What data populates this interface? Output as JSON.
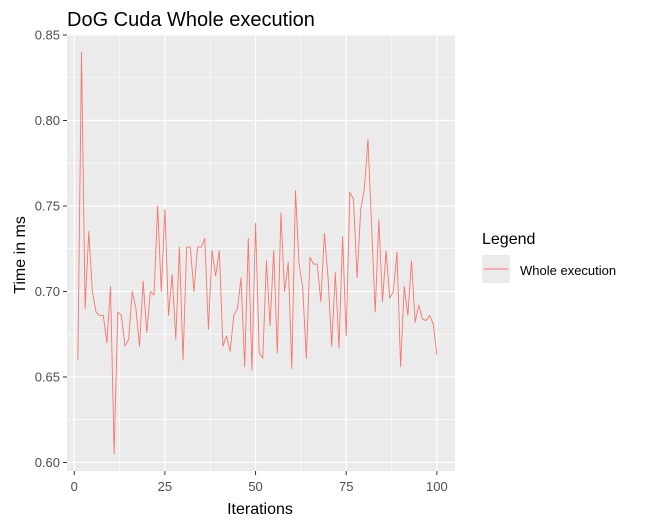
{
  "chart_data": {
    "type": "line",
    "title": "DoG Cuda Whole execution",
    "xlabel": "Iterations",
    "ylabel": "Time in ms",
    "xlim": [
      -2,
      105
    ],
    "ylim": [
      0.595,
      0.85
    ],
    "x_ticks": [
      0,
      25,
      50,
      75,
      100
    ],
    "y_ticks": [
      0.6,
      0.65,
      0.7,
      0.75,
      0.8,
      0.85
    ],
    "x_tick_labels": [
      "0",
      "25",
      "50",
      "75",
      "100"
    ],
    "y_tick_labels": [
      "0.60",
      "0.65",
      "0.70",
      "0.75",
      "0.80",
      "0.85"
    ],
    "grid": true,
    "legend": {
      "title": "Legend",
      "position": "right",
      "entries": [
        "Whole execution"
      ]
    },
    "colors": {
      "series": "#F8766D",
      "panel": "#EBEBEB",
      "grid": "#ffffff"
    },
    "series": [
      {
        "name": "Whole execution",
        "x": [
          1,
          2,
          3,
          4,
          5,
          6,
          7,
          8,
          9,
          10,
          11,
          12,
          13,
          14,
          15,
          16,
          17,
          18,
          19,
          20,
          21,
          22,
          23,
          24,
          25,
          26,
          27,
          28,
          29,
          30,
          31,
          32,
          33,
          34,
          35,
          36,
          37,
          38,
          39,
          40,
          41,
          42,
          43,
          44,
          45,
          46,
          47,
          48,
          49,
          50,
          51,
          52,
          53,
          54,
          55,
          56,
          57,
          58,
          59,
          60,
          61,
          62,
          63,
          64,
          65,
          66,
          67,
          68,
          69,
          70,
          71,
          72,
          73,
          74,
          75,
          76,
          77,
          78,
          79,
          80,
          81,
          82,
          83,
          84,
          85,
          86,
          87,
          88,
          89,
          90,
          91,
          92,
          93,
          94,
          95,
          96,
          97,
          98,
          99,
          100
        ],
        "values": [
          0.66,
          0.84,
          0.69,
          0.735,
          0.7,
          0.688,
          0.686,
          0.686,
          0.67,
          0.703,
          0.605,
          0.688,
          0.686,
          0.668,
          0.672,
          0.7,
          0.69,
          0.668,
          0.706,
          0.676,
          0.7,
          0.698,
          0.75,
          0.7,
          0.748,
          0.686,
          0.71,
          0.672,
          0.726,
          0.66,
          0.726,
          0.726,
          0.7,
          0.726,
          0.726,
          0.731,
          0.678,
          0.724,
          0.709,
          0.724,
          0.668,
          0.674,
          0.665,
          0.686,
          0.69,
          0.708,
          0.656,
          0.731,
          0.654,
          0.74,
          0.664,
          0.661,
          0.718,
          0.68,
          0.724,
          0.664,
          0.746,
          0.7,
          0.717,
          0.655,
          0.759,
          0.716,
          0.702,
          0.661,
          0.72,
          0.716,
          0.716,
          0.694,
          0.734,
          0.708,
          0.668,
          0.711,
          0.667,
          0.732,
          0.674,
          0.758,
          0.754,
          0.708,
          0.748,
          0.76,
          0.789,
          0.738,
          0.688,
          0.742,
          0.694,
          0.724,
          0.696,
          0.7,
          0.723,
          0.656,
          0.703,
          0.686,
          0.718,
          0.682,
          0.692,
          0.684,
          0.683,
          0.686,
          0.681,
          0.663
        ]
      }
    ]
  }
}
